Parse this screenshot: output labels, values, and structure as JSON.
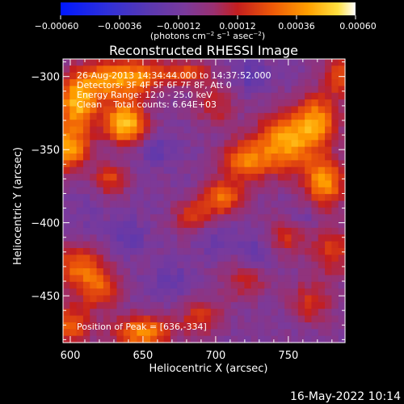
{
  "chart_data": {
    "type": "heatmap",
    "title": "Reconstructed RHESSI Image",
    "xlabel": "Heliocentric X (arcsec)",
    "ylabel": "Heliocentric Y (arcsec)",
    "xlim": [
      595,
      789
    ],
    "ylim": [
      -482,
      -288
    ],
    "x_ticks": [
      600,
      650,
      700,
      750
    ],
    "y_ticks": [
      -300,
      -350,
      -400,
      -450
    ],
    "x_tick_labels": [
      "600",
      "650",
      "700",
      "750"
    ],
    "y_tick_labels": [
      "−300",
      "−350",
      "−400",
      "−450"
    ],
    "colorbar": {
      "range": [
        -0.0006,
        0.0006
      ],
      "ticks": [
        "−0.00060",
        "−0.00036",
        "−0.00012",
        "0.00012",
        "0.00036",
        "0.00060"
      ],
      "unit_parts": [
        "(photons cm",
        "−2",
        " s",
        "−1",
        " asec",
        "−2",
        ")"
      ]
    },
    "annotations": [
      "26-Aug-2013 14:34:44.000 to 14:37:52.000",
      "Detectors: 3F 4F 5F 6F 7F 8F, Att 0",
      "Energy Range: 12.0 - 25.0 keV",
      "Clean    Total counts: 6.64E+03"
    ],
    "peak_label": "Position of Peak = [636,-334]",
    "peak_position": [
      636,
      -334
    ],
    "colors": [
      "#0018ff",
      "#4030c0",
      "#6a3aa6",
      "#8c3c96",
      "#b8282a",
      "#e05010",
      "#ff9a00",
      "#ffd83c",
      "#ffffe8"
    ],
    "grid_size": [
      42,
      42
    ],
    "blobs": [
      {
        "x": 605,
        "y": -318,
        "sx": 10,
        "sy": 14,
        "a": 0.00052
      },
      {
        "x": 628,
        "y": -302,
        "sx": 14,
        "sy": 10,
        "a": 0.0004
      },
      {
        "x": 638,
        "y": -332,
        "sx": 10,
        "sy": 10,
        "a": 0.00058
      },
      {
        "x": 598,
        "y": -350,
        "sx": 10,
        "sy": 10,
        "a": 0.00048
      },
      {
        "x": 650,
        "y": -300,
        "sx": 12,
        "sy": 8,
        "a": 0.0003
      },
      {
        "x": 628,
        "y": -370,
        "sx": 8,
        "sy": 8,
        "a": 0.00028
      },
      {
        "x": 680,
        "y": -298,
        "sx": 12,
        "sy": 6,
        "a": 0.0003
      },
      {
        "x": 720,
        "y": -358,
        "sx": 12,
        "sy": 10,
        "a": 0.00038
      },
      {
        "x": 748,
        "y": -345,
        "sx": 14,
        "sy": 14,
        "a": 0.00048
      },
      {
        "x": 770,
        "y": -330,
        "sx": 10,
        "sy": 12,
        "a": 0.00042
      },
      {
        "x": 775,
        "y": -372,
        "sx": 10,
        "sy": 12,
        "a": 0.00046
      },
      {
        "x": 705,
        "y": -383,
        "sx": 10,
        "sy": 8,
        "a": 0.00036
      },
      {
        "x": 685,
        "y": -395,
        "sx": 10,
        "sy": 8,
        "a": 0.00026
      },
      {
        "x": 785,
        "y": -300,
        "sx": 8,
        "sy": 10,
        "a": 0.0003
      },
      {
        "x": 605,
        "y": -430,
        "sx": 12,
        "sy": 10,
        "a": 0.00034
      },
      {
        "x": 620,
        "y": -445,
        "sx": 10,
        "sy": 10,
        "a": 0.0003
      },
      {
        "x": 600,
        "y": -470,
        "sx": 10,
        "sy": 10,
        "a": 0.00034
      },
      {
        "x": 650,
        "y": -475,
        "sx": 14,
        "sy": 8,
        "a": 0.00044
      },
      {
        "x": 690,
        "y": -465,
        "sx": 10,
        "sy": 8,
        "a": 0.00026
      },
      {
        "x": 748,
        "y": -410,
        "sx": 10,
        "sy": 10,
        "a": 0.00024
      },
      {
        "x": 780,
        "y": -420,
        "sx": 10,
        "sy": 12,
        "a": 0.00026
      },
      {
        "x": 765,
        "y": -455,
        "sx": 10,
        "sy": 10,
        "a": 0.00024
      },
      {
        "x": 720,
        "y": -440,
        "sx": 12,
        "sy": 10,
        "a": 0.00018
      },
      {
        "x": 700,
        "y": -320,
        "sx": 10,
        "sy": 10,
        "a": 0.0002
      },
      {
        "x": 610,
        "y": -395,
        "sx": 8,
        "sy": 10,
        "a": -4e-05
      },
      {
        "x": 640,
        "y": -410,
        "sx": 8,
        "sy": 8,
        "a": -0.00012
      },
      {
        "x": 700,
        "y": -410,
        "sx": 8,
        "sy": 8,
        "a": -0.0001
      },
      {
        "x": 730,
        "y": -420,
        "sx": 10,
        "sy": 8,
        "a": -0.00014
      },
      {
        "x": 670,
        "y": -440,
        "sx": 10,
        "sy": 8,
        "a": -0.0001
      },
      {
        "x": 660,
        "y": -350,
        "sx": 8,
        "sy": 8,
        "a": -0.00012
      },
      {
        "x": 725,
        "y": -300,
        "sx": 8,
        "sy": 8,
        "a": -0.00014
      },
      {
        "x": 760,
        "y": -398,
        "sx": 8,
        "sy": 6,
        "a": -0.0001
      }
    ],
    "base": -8e-05
  },
  "footer": {
    "date": "16-May-2022 10:14"
  }
}
